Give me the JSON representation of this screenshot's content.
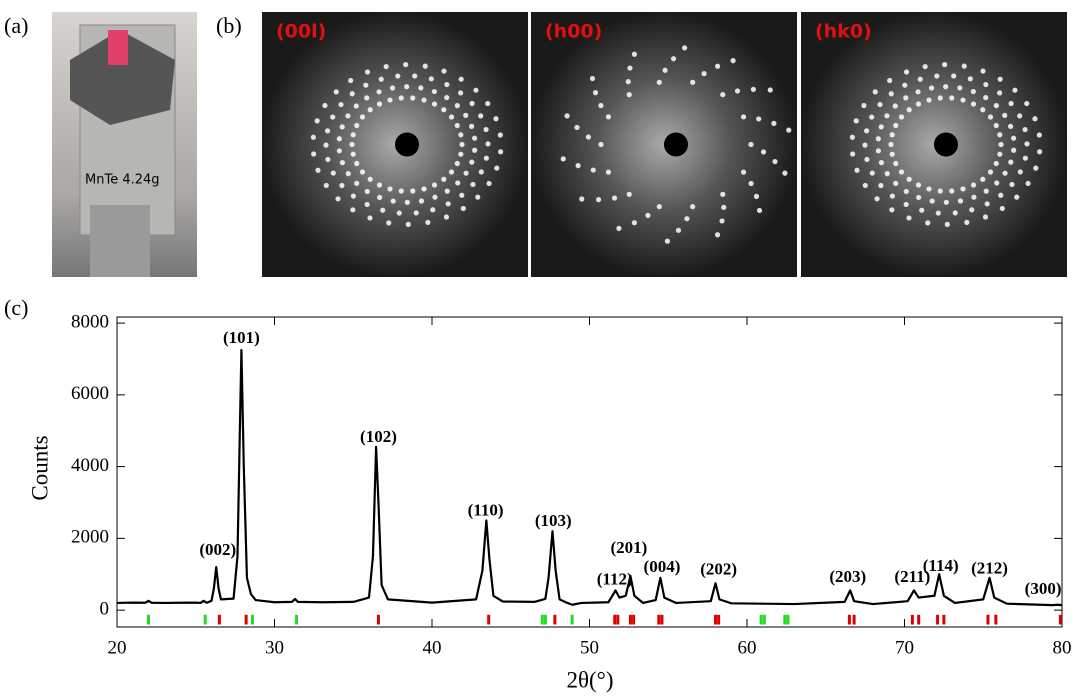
{
  "panel_labels": [
    "(a)",
    "(b)",
    "(c)"
  ],
  "images": [
    {
      "label": "(00l)"
    },
    {
      "label": "(h00)"
    },
    {
      "label": "(hk0)"
    }
  ],
  "chart_data": {
    "type": "line",
    "xlabel": "2θ(°)",
    "ylabel": "Counts",
    "xlim": [
      20,
      80
    ],
    "xticks": [
      20,
      30,
      40,
      50,
      60,
      70,
      80
    ],
    "ylim": [
      -470,
      8170
    ],
    "yticks": [
      0,
      2000,
      4000,
      6000,
      8000
    ],
    "x": [
      20,
      21,
      21.8,
      22.0,
      22.2,
      23,
      24,
      25,
      25.3,
      25.5,
      25.7,
      26.0,
      26.15,
      26.3,
      26.45,
      26.6,
      27.4,
      27.65,
      27.8,
      27.9,
      28.05,
      28.25,
      28.5,
      28.8,
      30,
      31.1,
      31.3,
      31.5,
      33,
      35,
      36.0,
      36.25,
      36.45,
      36.6,
      36.8,
      37.2,
      40,
      42.8,
      43.2,
      43.45,
      43.65,
      43.9,
      44.5,
      46.5,
      47.1,
      47.2,
      47.4,
      47.65,
      47.85,
      48.1,
      48.6,
      48.9,
      49.5,
      51.2,
      51.45,
      51.65,
      51.9,
      52.3,
      52.6,
      52.85,
      53.4,
      54.2,
      54.5,
      54.75,
      55.5,
      57.7,
      58.0,
      58.25,
      59,
      61,
      63,
      66.2,
      66.55,
      66.8,
      68,
      70.2,
      70.6,
      70.9,
      71.9,
      72.2,
      72.5,
      73.2,
      75.0,
      75.4,
      75.7,
      76.5,
      79.4,
      79.7,
      80
    ],
    "series": [
      {
        "color": "#000000",
        "values": [
          200,
          210,
          205,
          260,
          205,
          200,
          205,
          210,
          200,
          260,
          205,
          260,
          600,
          1200,
          600,
          300,
          320,
          1500,
          5000,
          7250,
          4000,
          900,
          450,
          280,
          220,
          230,
          310,
          230,
          220,
          230,
          350,
          1500,
          4550,
          3000,
          700,
          300,
          210,
          300,
          1100,
          2500,
          1400,
          400,
          240,
          230,
          300,
          320,
          900,
          2200,
          1100,
          300,
          200,
          150,
          200,
          220,
          400,
          550,
          350,
          400,
          950,
          400,
          200,
          280,
          900,
          350,
          200,
          250,
          750,
          300,
          190,
          180,
          170,
          230,
          550,
          250,
          170,
          250,
          550,
          350,
          400,
          1000,
          400,
          200,
          300,
          900,
          350,
          180,
          140,
          150,
          140
        ]
      }
    ],
    "markers": [
      {
        "color": "#e00000",
        "x": [
          26.5,
          28.2,
          36.6,
          43.6,
          47.8,
          51.6,
          51.8,
          52.6,
          52.8,
          54.4,
          54.6,
          58.0,
          58.2,
          66.5,
          66.8,
          70.5,
          70.9,
          72.1,
          72.5,
          75.3,
          75.8,
          79.9
        ]
      },
      {
        "color": "#22dd22",
        "x": [
          22.0,
          25.6,
          28.6,
          31.4,
          47.0,
          47.2,
          48.9,
          60.9,
          61.1,
          62.4,
          62.6
        ]
      }
    ],
    "annotations": [
      {
        "text": "(002)",
        "x": 26.4,
        "y": 1650
      },
      {
        "text": "(101)",
        "x": 27.9,
        "y": 7550
      },
      {
        "text": "(102)",
        "x": 36.6,
        "y": 4800
      },
      {
        "text": "(110)",
        "x": 43.4,
        "y": 2750
      },
      {
        "text": "(103)",
        "x": 47.7,
        "y": 2450
      },
      {
        "text": "(112)",
        "x": 51.6,
        "y": 830
      },
      {
        "text": "(201)",
        "x": 52.5,
        "y": 1700
      },
      {
        "text": "(004)",
        "x": 54.6,
        "y": 1170
      },
      {
        "text": "(202)",
        "x": 58.2,
        "y": 1100
      },
      {
        "text": "(203)",
        "x": 66.4,
        "y": 890
      },
      {
        "text": "(211)",
        "x": 70.5,
        "y": 890
      },
      {
        "text": "(114)",
        "x": 72.3,
        "y": 1200
      },
      {
        "text": "(212)",
        "x": 75.4,
        "y": 1130
      },
      {
        "text": "(300)",
        "x": 78.8,
        "y": 560
      }
    ]
  }
}
